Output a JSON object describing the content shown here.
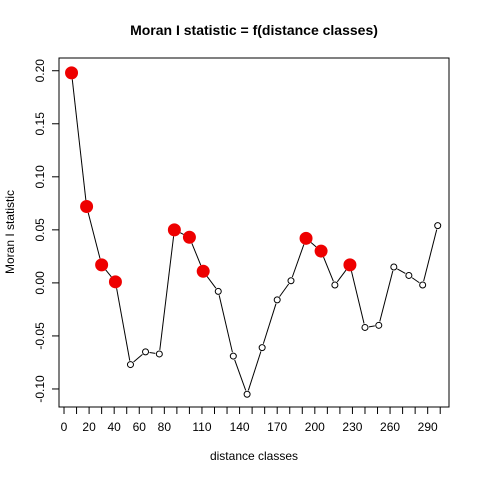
{
  "chart_data": {
    "type": "line",
    "title": "Moran I statistic = f(distance classes)",
    "xlabel": "distance classes",
    "ylabel": "Moran I statistic",
    "x_ticks": [
      0,
      20,
      40,
      60,
      80,
      110,
      140,
      170,
      200,
      230,
      260,
      290
    ],
    "y_ticks": [
      -0.1,
      -0.05,
      0.0,
      0.05,
      0.1,
      0.15,
      0.2
    ],
    "y_tick_labels": [
      "-0.10",
      "-0.05",
      "0.00",
      "0.05",
      "0.10",
      "0.15",
      "0.20"
    ],
    "x_minor_ticks": [
      10,
      30,
      50,
      70,
      90,
      100,
      120,
      130,
      150,
      160,
      180,
      190,
      210,
      220,
      240,
      250,
      270,
      280,
      300
    ],
    "xlim": [
      -4,
      307
    ],
    "ylim": [
      -0.117,
      0.212
    ],
    "grid": false,
    "legend": "none",
    "line_color": "#000000",
    "significant_color": "#ee0000",
    "series": [
      {
        "values": [
          {
            "x": 6,
            "y": 0.198,
            "significant": true
          },
          {
            "x": 18,
            "y": 0.072,
            "significant": true
          },
          {
            "x": 30,
            "y": 0.017,
            "significant": true
          },
          {
            "x": 41,
            "y": 0.001,
            "significant": true
          },
          {
            "x": 53,
            "y": -0.077,
            "significant": false
          },
          {
            "x": 65,
            "y": -0.065,
            "significant": false
          },
          {
            "x": 76,
            "y": -0.067,
            "significant": false
          },
          {
            "x": 88,
            "y": 0.05,
            "significant": true
          },
          {
            "x": 100,
            "y": 0.043,
            "significant": true
          },
          {
            "x": 111,
            "y": 0.011,
            "significant": true
          },
          {
            "x": 123,
            "y": -0.008,
            "significant": false
          },
          {
            "x": 135,
            "y": -0.069,
            "significant": false
          },
          {
            "x": 146,
            "y": -0.105,
            "significant": false
          },
          {
            "x": 158,
            "y": -0.061,
            "significant": false
          },
          {
            "x": 170,
            "y": -0.016,
            "significant": false
          },
          {
            "x": 181,
            "y": 0.002,
            "significant": false
          },
          {
            "x": 193,
            "y": 0.042,
            "significant": true
          },
          {
            "x": 205,
            "y": 0.03,
            "significant": true
          },
          {
            "x": 216,
            "y": -0.002,
            "significant": false
          },
          {
            "x": 228,
            "y": 0.017,
            "significant": true
          },
          {
            "x": 240,
            "y": -0.042,
            "significant": false
          },
          {
            "x": 251,
            "y": -0.04,
            "significant": false
          },
          {
            "x": 263,
            "y": 0.015,
            "significant": false
          },
          {
            "x": 275,
            "y": 0.007,
            "significant": false
          },
          {
            "x": 286,
            "y": -0.002,
            "significant": false
          },
          {
            "x": 298,
            "y": 0.054,
            "significant": false
          }
        ]
      }
    ]
  }
}
